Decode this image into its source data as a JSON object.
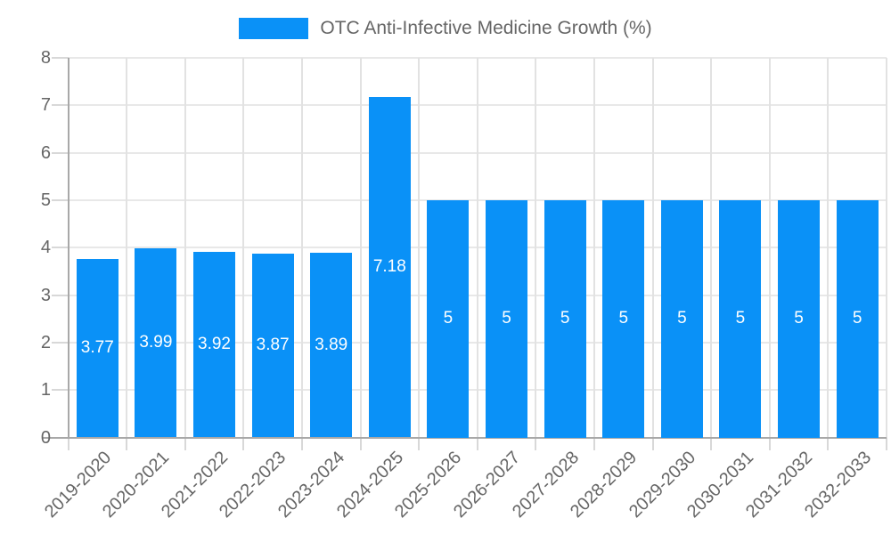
{
  "chart_data": {
    "type": "bar",
    "title": "OTC Anti-Infective Medicine Growth (%)",
    "legend_position": "top",
    "categories": [
      "2019-2020",
      "2020-2021",
      "2021-2022",
      "2022-2023",
      "2023-2024",
      "2024-2025",
      "2025-2026",
      "2026-2027",
      "2027-2028",
      "2028-2029",
      "2029-2030",
      "2030-2031",
      "2031-2032",
      "2032-2033"
    ],
    "values": [
      3.77,
      3.99,
      3.92,
      3.87,
      3.89,
      7.18,
      5,
      5,
      5,
      5,
      5,
      5,
      5,
      5
    ],
    "value_labels": [
      "3.77",
      "3.99",
      "3.92",
      "3.87",
      "3.89",
      "7.18",
      "5",
      "5",
      "5",
      "5",
      "5",
      "5",
      "5",
      "5"
    ],
    "xlabel": "",
    "ylabel": "",
    "ylim": [
      0,
      8
    ],
    "yticks": [
      0,
      1,
      2,
      3,
      4,
      5,
      6,
      7,
      8
    ],
    "grid": true,
    "colors": {
      "bar": "#0a91f7",
      "grid_horizontal": "#e8e8e8",
      "grid_vertical": "#e2e2e2",
      "axis_line": "#a8a8a8",
      "tick_mark": "#d8d8d8",
      "tick_text": "#666666",
      "value_text": "#ffffff"
    }
  }
}
